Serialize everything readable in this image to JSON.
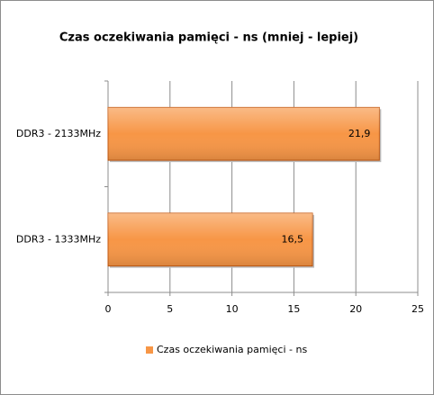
{
  "chart_data": {
    "type": "hbar",
    "title": "Czas oczekiwania pamięci - ns (mniej - lepiej)",
    "categories": [
      "DDR3 - 2133MHz",
      "DDR3 - 1333MHz"
    ],
    "series": [
      {
        "name": "Czas oczekiwania pamięci - ns",
        "color": "#f79646",
        "values": [
          21.9,
          16.5
        ],
        "value_labels": [
          "21,9",
          "16,5"
        ]
      }
    ],
    "xlim": [
      0,
      25
    ],
    "xticks": [
      0,
      5,
      10,
      15,
      20,
      25
    ],
    "grid": true,
    "legend": "bottom"
  }
}
